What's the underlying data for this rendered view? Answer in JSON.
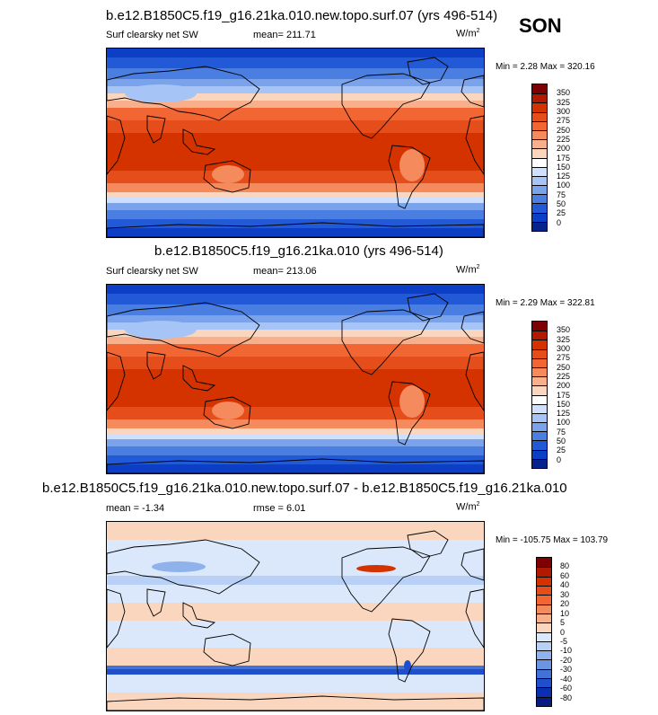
{
  "season": "SON",
  "panels": [
    {
      "title": "b.e12.B1850C5.f19_g16.21ka.010.new.topo.surf.07 (yrs 496-514)",
      "left_label": "Surf clearsky net SW",
      "mean_label": "mean= 211.71",
      "units": "W/m",
      "units_sup": "2",
      "minmax": "Min =   2.28 Max = 320.16",
      "kind": "abs"
    },
    {
      "title": "b.e12.B1850C5.f19_g16.21ka.010 (yrs 496-514)",
      "left_label": "Surf clearsky net SW",
      "mean_label": "mean= 213.06",
      "units": "W/m",
      "units_sup": "2",
      "minmax": "Min =   2.29 Max = 322.81",
      "kind": "abs"
    },
    {
      "title": "b.e12.B1850C5.f19_g16.21ka.010.new.topo.surf.07 - b.e12.B1850C5.f19_g16.21ka.010",
      "left_label": "mean =  -1.34",
      "mean_label": "rmse =   6.01",
      "units": "W/m",
      "units_sup": "2",
      "minmax": "Min = -105.75 Max = 103.79",
      "kind": "diff"
    }
  ],
  "abs_legend": {
    "labels": [
      "350",
      "325",
      "300",
      "275",
      "250",
      "225",
      "200",
      "175",
      "150",
      "125",
      "100",
      "75",
      "50",
      "25",
      "0"
    ],
    "colors": [
      "#7f0000",
      "#b21a00",
      "#d43300",
      "#e54d1a",
      "#f26633",
      "#f58a5c",
      "#f8b08c",
      "#fbd6bf",
      "#ffffff",
      "#cfe0ff",
      "#a6c4f5",
      "#7aa3ec",
      "#4a7ee0",
      "#2259d6",
      "#0c3ec6",
      "#06238c"
    ]
  },
  "diff_legend": {
    "labels": [
      "80",
      "60",
      "40",
      "30",
      "20",
      "10",
      "5",
      "0",
      "-5",
      "-10",
      "-20",
      "-30",
      "-40",
      "-60",
      "-80"
    ],
    "colors": [
      "#7f0000",
      "#b21a00",
      "#d43300",
      "#e54d1a",
      "#f26633",
      "#f58a5c",
      "#f8b08c",
      "#fbd6bf",
      "#dbe8fb",
      "#b8d0f5",
      "#8fb2ec",
      "#6b94e3",
      "#4271d8",
      "#1f4fcb",
      "#0a2fb0",
      "#061c80"
    ]
  }
}
